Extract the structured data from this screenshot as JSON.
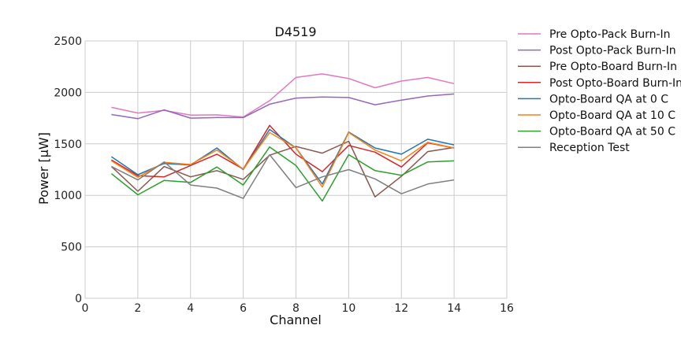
{
  "chart_data": {
    "type": "line",
    "title": "D4519",
    "xlabel": "Channel",
    "ylabel": "Power [μW]",
    "xlim": [
      0,
      16
    ],
    "ylim": [
      0,
      2500
    ],
    "xticks": [
      "0",
      "2",
      "4",
      "6",
      "8",
      "10",
      "12",
      "14",
      "16"
    ],
    "yticks": [
      "0",
      "500",
      "1000",
      "1500",
      "2000",
      "2500"
    ],
    "grid": true,
    "legend_position": "outside-right",
    "x": [
      1,
      2,
      3,
      4,
      5,
      6,
      7,
      8,
      9,
      10,
      11,
      12,
      13,
      14
    ],
    "series": [
      {
        "name": "Pre Opto-Pack Burn-In",
        "color": "#e377c2",
        "values": [
          1855,
          1800,
          1825,
          1780,
          1782,
          1760,
          1920,
          2145,
          2180,
          2135,
          2045,
          2110,
          2145,
          2085
        ]
      },
      {
        "name": "Post Opto-Pack Burn-In",
        "color": "#9467bd",
        "values": [
          1785,
          1745,
          1830,
          1750,
          1755,
          1755,
          1885,
          1945,
          1955,
          1950,
          1880,
          1925,
          1965,
          1985
        ]
      },
      {
        "name": "Pre Opto-Board Burn-In",
        "color": "#8c564b",
        "values": [
          1280,
          1040,
          1280,
          1180,
          1240,
          1155,
          1390,
          1475,
          1410,
          1525,
          985,
          1185,
          1425,
          1465
        ]
      },
      {
        "name": "Post Opto-Board Burn-In",
        "color": "#d62728",
        "values": [
          1345,
          1190,
          1180,
          1290,
          1400,
          1255,
          1680,
          1400,
          1230,
          1485,
          1420,
          1275,
          1510,
          1460
        ]
      },
      {
        "name": "Opto-Board QA at 0 C",
        "color": "#1f77b4",
        "values": [
          1375,
          1200,
          1310,
          1295,
          1460,
          1250,
          1640,
          1460,
          1110,
          1615,
          1460,
          1400,
          1545,
          1490
        ]
      },
      {
        "name": "Opto-Board QA at 10 C",
        "color": "#ff7f0e",
        "values": [
          1335,
          1175,
          1320,
          1300,
          1440,
          1255,
          1610,
          1460,
          1080,
          1610,
          1440,
          1335,
          1515,
          1460
        ]
      },
      {
        "name": "Opto-Board QA at 50 C",
        "color": "#2ca02c",
        "values": [
          1210,
          1005,
          1145,
          1125,
          1275,
          1100,
          1470,
          1290,
          945,
          1395,
          1240,
          1195,
          1325,
          1335
        ]
      },
      {
        "name": "Reception Test",
        "color": "#7f7f7f",
        "values": [
          1280,
          1150,
          1325,
          1100,
          1070,
          970,
          1395,
          1075,
          1180,
          1250,
          1160,
          1015,
          1110,
          1150
        ]
      }
    ]
  }
}
